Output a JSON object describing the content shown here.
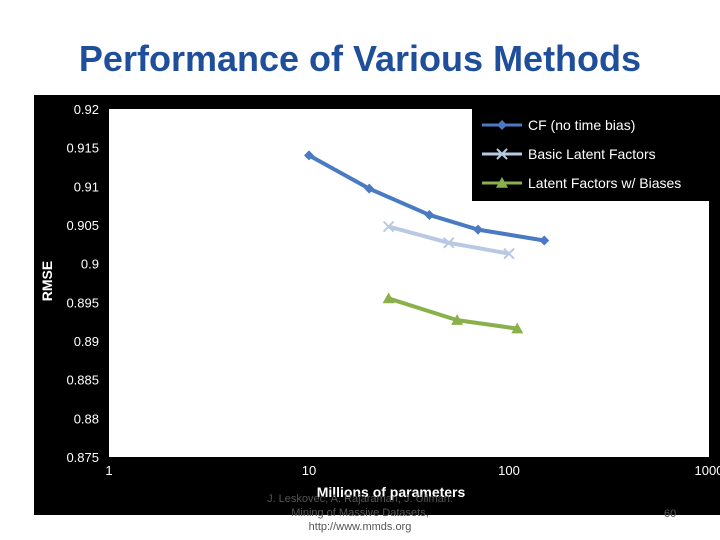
{
  "slide": {
    "title": "Performance of Various Methods",
    "footer_line1": "J. Leskovec, A. Rajaraman, J. Ullman:",
    "footer_line2": "Mining of Massive Datasets,",
    "footer_line3": "http://www.mmds.org",
    "page_number": "60"
  },
  "colors": {
    "plot_bg": "#ffffff",
    "frame_bg": "#000000",
    "series_cf": "#4a7ac2",
    "series_basic": "#b9c9e3",
    "series_bias": "#8ab04b"
  },
  "chart_data": {
    "type": "line",
    "title": "",
    "xlabel": "Millions of parameters",
    "ylabel": "RMSE",
    "xscale": "log",
    "xlim": [
      1,
      1000
    ],
    "ylim": [
      0.875,
      0.92
    ],
    "x_ticks": [
      "1",
      "10",
      "100",
      "1000"
    ],
    "y_ticks": [
      "0.875",
      "0.88",
      "0.885",
      "0.89",
      "0.895",
      "0.9",
      "0.905",
      "0.91",
      "0.915",
      "0.92"
    ],
    "grid": false,
    "legend_position": "top-right",
    "series": [
      {
        "name": "CF (no time bias)",
        "marker": "diamond",
        "x": [
          10,
          20,
          40,
          70,
          150
        ],
        "y": [
          0.914,
          0.9097,
          0.9063,
          0.9044,
          0.903
        ]
      },
      {
        "name": "Basic Latent Factors",
        "marker": "x",
        "x": [
          25,
          50,
          100
        ],
        "y": [
          0.9048,
          0.9027,
          0.9013
        ]
      },
      {
        "name": "Latent Factors w/ Biases",
        "marker": "triangle",
        "x": [
          25,
          55,
          110
        ],
        "y": [
          0.8955,
          0.8927,
          0.8916
        ]
      }
    ]
  }
}
